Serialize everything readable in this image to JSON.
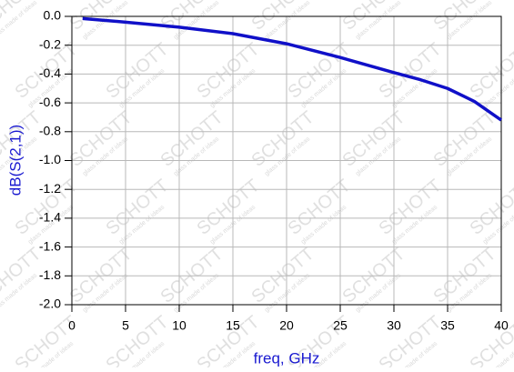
{
  "chart_data": {
    "type": "line",
    "xlabel": "freq, GHz",
    "ylabel": "dB(S(2,1))",
    "x": [
      1,
      5,
      10,
      15,
      20,
      25,
      30,
      32.5,
      35,
      37.5,
      40
    ],
    "series": [
      {
        "name": "dB(S(2,1))",
        "color": "#1010c8",
        "values": [
          -0.015,
          -0.04,
          -0.075,
          -0.12,
          -0.19,
          -0.285,
          -0.39,
          -0.44,
          -0.5,
          -0.59,
          -0.72
        ]
      }
    ],
    "xlim": [
      0,
      40
    ],
    "xticks": [
      0,
      5,
      10,
      15,
      20,
      25,
      30,
      35,
      40
    ],
    "ylim": [
      -2,
      0
    ],
    "yticks": [
      {
        "value": 0,
        "label": "0.0"
      },
      -0.2,
      -0.4,
      -0.6,
      -0.8,
      {
        "value": -1,
        "label": "-1.0"
      },
      -1.2,
      -1.4,
      -1.6,
      -1.8,
      {
        "value": -2,
        "label": "-2.0"
      }
    ],
    "grid": true,
    "watermark": {
      "brand": "SCHOTT",
      "tagline": "glass made of ideas"
    }
  }
}
